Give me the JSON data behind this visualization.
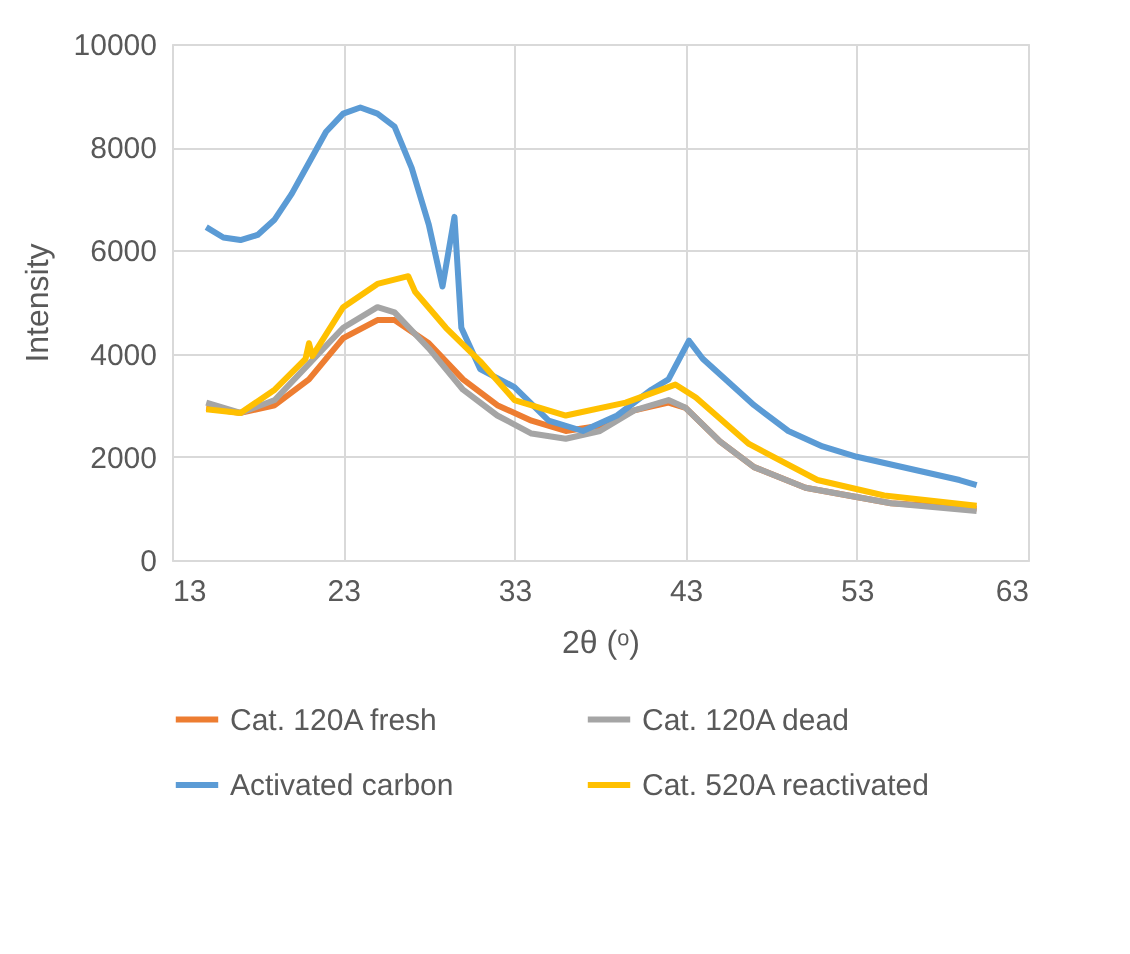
{
  "chart_data": {
    "type": "line",
    "xlabel": "2θ (ᵒ)",
    "ylabel": "Intensity",
    "xlim": [
      13,
      63
    ],
    "xticks": [
      13,
      23,
      33,
      43,
      53,
      63
    ],
    "ylim": [
      0,
      10000
    ],
    "yticks": [
      0,
      2000,
      4000,
      6000,
      8000,
      10000
    ],
    "grid": true,
    "legend": "bottom",
    "marker": "none",
    "line_style": "solid",
    "series": [
      {
        "name": "Cat. 120A fresh",
        "color": "#ed7d31",
        "x": [
          15,
          17,
          19,
          21,
          23,
          25,
          26,
          28,
          30,
          32,
          34,
          36,
          38,
          40,
          42,
          43,
          45,
          47,
          50,
          55,
          60
        ],
        "values": [
          2950,
          2850,
          3000,
          3500,
          4300,
          4650,
          4650,
          4200,
          3500,
          3000,
          2700,
          2500,
          2600,
          2900,
          3050,
          2950,
          2300,
          1800,
          1400,
          1100,
          1000
        ]
      },
      {
        "name": "Cat. 120A dead",
        "color": "#a5a5a5",
        "x": [
          15,
          17,
          19,
          21,
          23,
          25,
          26,
          28,
          30,
          32,
          34,
          36,
          38,
          40,
          42,
          43,
          45,
          47,
          50,
          55,
          60
        ],
        "values": [
          3050,
          2850,
          3100,
          3800,
          4500,
          4900,
          4800,
          4100,
          3300,
          2800,
          2450,
          2350,
          2500,
          2900,
          3100,
          2950,
          2300,
          1800,
          1400,
          1100,
          950
        ]
      },
      {
        "name": "Activated carbon",
        "color": "#5b9bd5",
        "x": [
          15,
          16,
          17,
          18,
          19,
          20,
          21,
          22,
          23,
          24,
          25,
          26,
          27,
          28,
          28.8,
          29.5,
          29.9,
          31,
          33,
          35,
          37,
          39,
          41,
          42,
          43.2,
          44,
          45,
          47,
          49,
          51,
          53,
          55,
          57,
          59,
          60
        ],
        "values": [
          6450,
          6250,
          6200,
          6300,
          6600,
          7100,
          7700,
          8300,
          8650,
          8770,
          8650,
          8400,
          7600,
          6500,
          5300,
          6650,
          4500,
          3700,
          3350,
          2700,
          2500,
          2800,
          3300,
          3500,
          4250,
          3900,
          3600,
          3000,
          2500,
          2200,
          2000,
          1850,
          1700,
          1550,
          1450
        ]
      },
      {
        "name": "Cat. 520A reactivated",
        "color": "#ffc000",
        "x": [
          15,
          17,
          19,
          20.8,
          21,
          21.2,
          23,
          25,
          26.8,
          27.2,
          29,
          31,
          33,
          36,
          39.5,
          42.4,
          43.6,
          46.7,
          50.7,
          54.6,
          60
        ],
        "values": [
          2920,
          2850,
          3300,
          3900,
          4200,
          3950,
          4900,
          5350,
          5500,
          5200,
          4500,
          3850,
          3100,
          2800,
          3050,
          3400,
          3150,
          2250,
          1550,
          1250,
          1050
        ]
      }
    ]
  }
}
